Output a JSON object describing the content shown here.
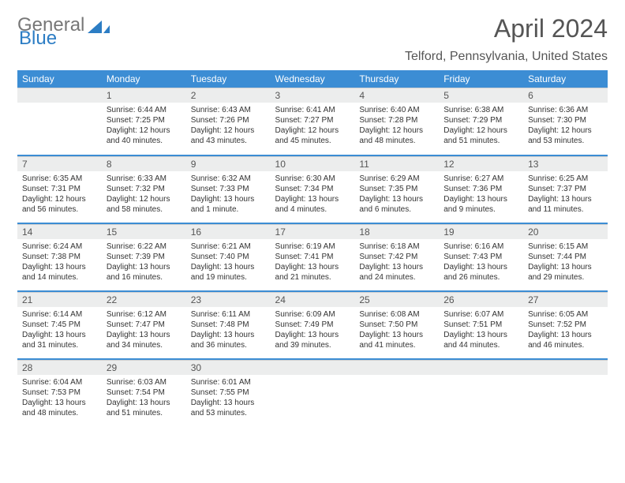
{
  "brand": {
    "part1": "General",
    "part2": "Blue"
  },
  "month_title": "April 2024",
  "location": "Telford, Pennsylvania, United States",
  "colors": {
    "header_bg": "#3c8dd4",
    "header_fg": "#ffffff",
    "daynum_bg": "#eceded",
    "week_sep": "#3c8dd4",
    "text": "#333333",
    "subtext": "#555555",
    "logo_gray": "#777777",
    "logo_blue": "#2c7dc4",
    "background": "#ffffff"
  },
  "typography": {
    "month_title_pt": 32,
    "location_pt": 16,
    "day_header_pt": 12,
    "daynum_pt": 12,
    "cell_body_pt": 10
  },
  "day_headers": [
    "Sunday",
    "Monday",
    "Tuesday",
    "Wednesday",
    "Thursday",
    "Friday",
    "Saturday"
  ],
  "weeks": [
    [
      null,
      {
        "n": "1",
        "sr": "Sunrise: 6:44 AM",
        "ss": "Sunset: 7:25 PM",
        "dl1": "Daylight: 12 hours",
        "dl2": "and 40 minutes."
      },
      {
        "n": "2",
        "sr": "Sunrise: 6:43 AM",
        "ss": "Sunset: 7:26 PM",
        "dl1": "Daylight: 12 hours",
        "dl2": "and 43 minutes."
      },
      {
        "n": "3",
        "sr": "Sunrise: 6:41 AM",
        "ss": "Sunset: 7:27 PM",
        "dl1": "Daylight: 12 hours",
        "dl2": "and 45 minutes."
      },
      {
        "n": "4",
        "sr": "Sunrise: 6:40 AM",
        "ss": "Sunset: 7:28 PM",
        "dl1": "Daylight: 12 hours",
        "dl2": "and 48 minutes."
      },
      {
        "n": "5",
        "sr": "Sunrise: 6:38 AM",
        "ss": "Sunset: 7:29 PM",
        "dl1": "Daylight: 12 hours",
        "dl2": "and 51 minutes."
      },
      {
        "n": "6",
        "sr": "Sunrise: 6:36 AM",
        "ss": "Sunset: 7:30 PM",
        "dl1": "Daylight: 12 hours",
        "dl2": "and 53 minutes."
      }
    ],
    [
      {
        "n": "7",
        "sr": "Sunrise: 6:35 AM",
        "ss": "Sunset: 7:31 PM",
        "dl1": "Daylight: 12 hours",
        "dl2": "and 56 minutes."
      },
      {
        "n": "8",
        "sr": "Sunrise: 6:33 AM",
        "ss": "Sunset: 7:32 PM",
        "dl1": "Daylight: 12 hours",
        "dl2": "and 58 minutes."
      },
      {
        "n": "9",
        "sr": "Sunrise: 6:32 AM",
        "ss": "Sunset: 7:33 PM",
        "dl1": "Daylight: 13 hours",
        "dl2": "and 1 minute."
      },
      {
        "n": "10",
        "sr": "Sunrise: 6:30 AM",
        "ss": "Sunset: 7:34 PM",
        "dl1": "Daylight: 13 hours",
        "dl2": "and 4 minutes."
      },
      {
        "n": "11",
        "sr": "Sunrise: 6:29 AM",
        "ss": "Sunset: 7:35 PM",
        "dl1": "Daylight: 13 hours",
        "dl2": "and 6 minutes."
      },
      {
        "n": "12",
        "sr": "Sunrise: 6:27 AM",
        "ss": "Sunset: 7:36 PM",
        "dl1": "Daylight: 13 hours",
        "dl2": "and 9 minutes."
      },
      {
        "n": "13",
        "sr": "Sunrise: 6:25 AM",
        "ss": "Sunset: 7:37 PM",
        "dl1": "Daylight: 13 hours",
        "dl2": "and 11 minutes."
      }
    ],
    [
      {
        "n": "14",
        "sr": "Sunrise: 6:24 AM",
        "ss": "Sunset: 7:38 PM",
        "dl1": "Daylight: 13 hours",
        "dl2": "and 14 minutes."
      },
      {
        "n": "15",
        "sr": "Sunrise: 6:22 AM",
        "ss": "Sunset: 7:39 PM",
        "dl1": "Daylight: 13 hours",
        "dl2": "and 16 minutes."
      },
      {
        "n": "16",
        "sr": "Sunrise: 6:21 AM",
        "ss": "Sunset: 7:40 PM",
        "dl1": "Daylight: 13 hours",
        "dl2": "and 19 minutes."
      },
      {
        "n": "17",
        "sr": "Sunrise: 6:19 AM",
        "ss": "Sunset: 7:41 PM",
        "dl1": "Daylight: 13 hours",
        "dl2": "and 21 minutes."
      },
      {
        "n": "18",
        "sr": "Sunrise: 6:18 AM",
        "ss": "Sunset: 7:42 PM",
        "dl1": "Daylight: 13 hours",
        "dl2": "and 24 minutes."
      },
      {
        "n": "19",
        "sr": "Sunrise: 6:16 AM",
        "ss": "Sunset: 7:43 PM",
        "dl1": "Daylight: 13 hours",
        "dl2": "and 26 minutes."
      },
      {
        "n": "20",
        "sr": "Sunrise: 6:15 AM",
        "ss": "Sunset: 7:44 PM",
        "dl1": "Daylight: 13 hours",
        "dl2": "and 29 minutes."
      }
    ],
    [
      {
        "n": "21",
        "sr": "Sunrise: 6:14 AM",
        "ss": "Sunset: 7:45 PM",
        "dl1": "Daylight: 13 hours",
        "dl2": "and 31 minutes."
      },
      {
        "n": "22",
        "sr": "Sunrise: 6:12 AM",
        "ss": "Sunset: 7:47 PM",
        "dl1": "Daylight: 13 hours",
        "dl2": "and 34 minutes."
      },
      {
        "n": "23",
        "sr": "Sunrise: 6:11 AM",
        "ss": "Sunset: 7:48 PM",
        "dl1": "Daylight: 13 hours",
        "dl2": "and 36 minutes."
      },
      {
        "n": "24",
        "sr": "Sunrise: 6:09 AM",
        "ss": "Sunset: 7:49 PM",
        "dl1": "Daylight: 13 hours",
        "dl2": "and 39 minutes."
      },
      {
        "n": "25",
        "sr": "Sunrise: 6:08 AM",
        "ss": "Sunset: 7:50 PM",
        "dl1": "Daylight: 13 hours",
        "dl2": "and 41 minutes."
      },
      {
        "n": "26",
        "sr": "Sunrise: 6:07 AM",
        "ss": "Sunset: 7:51 PM",
        "dl1": "Daylight: 13 hours",
        "dl2": "and 44 minutes."
      },
      {
        "n": "27",
        "sr": "Sunrise: 6:05 AM",
        "ss": "Sunset: 7:52 PM",
        "dl1": "Daylight: 13 hours",
        "dl2": "and 46 minutes."
      }
    ],
    [
      {
        "n": "28",
        "sr": "Sunrise: 6:04 AM",
        "ss": "Sunset: 7:53 PM",
        "dl1": "Daylight: 13 hours",
        "dl2": "and 48 minutes."
      },
      {
        "n": "29",
        "sr": "Sunrise: 6:03 AM",
        "ss": "Sunset: 7:54 PM",
        "dl1": "Daylight: 13 hours",
        "dl2": "and 51 minutes."
      },
      {
        "n": "30",
        "sr": "Sunrise: 6:01 AM",
        "ss": "Sunset: 7:55 PM",
        "dl1": "Daylight: 13 hours",
        "dl2": "and 53 minutes."
      },
      null,
      null,
      null,
      null
    ]
  ]
}
